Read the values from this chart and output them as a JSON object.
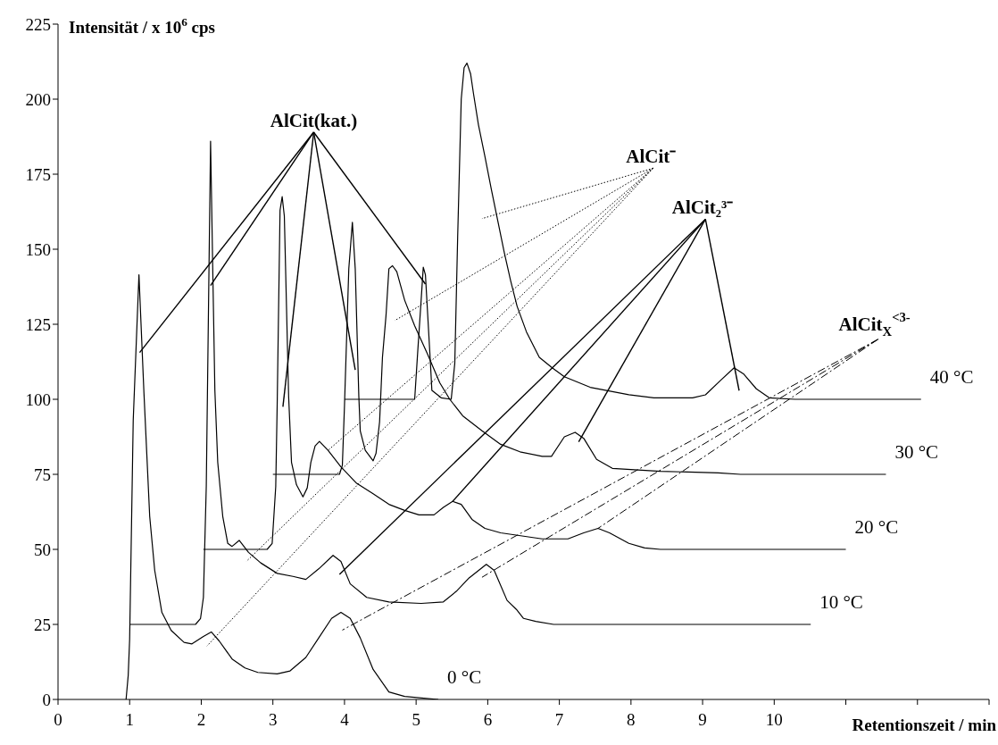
{
  "chart_data": {
    "type": "line",
    "xlabel": "Retentionszeit / min",
    "ylabel": "Intensität / x 10$^{6}$ cps",
    "xlim": [
      0,
      13
    ],
    "xticks": [
      0,
      1,
      2,
      3,
      4,
      5,
      6,
      7,
      8,
      9,
      10,
      {
        "value": 11,
        "label": null
      },
      {
        "value": 12,
        "label": null
      },
      {
        "value": 13,
        "label": null
      }
    ],
    "ylim": [
      0,
      225
    ],
    "yticks": [
      0,
      25,
      50,
      75,
      100,
      125,
      150,
      175,
      200,
      225
    ],
    "annotations": [
      {
        "text": "AlCit(kat.)",
        "x": 1.14,
        "y": 115.6
      },
      {
        "text": "AlCit⁻",
        "x": 3.77,
        "y": 83
      },
      {
        "text": "AlCit₂³⁻",
        "x": 5.51,
        "y": 66
      },
      {
        "text": "AlCit$_{X}$$^{<3-}$",
        "x": 7.54,
        "y": 57
      }
    ],
    "series": [
      {
        "name": "0 °C",
        "color": "#000000",
        "x": [
          0.95,
          0.98,
          1.0,
          1.05,
          1.13,
          1.2,
          1.28,
          1.35,
          1.45,
          1.58,
          1.76,
          1.87,
          2.03,
          2.14,
          2.25,
          2.43,
          2.61,
          2.79,
          3.06,
          3.24,
          3.46,
          3.64,
          3.82,
          3.95,
          4.08,
          4.22,
          4.4,
          4.62,
          4.84,
          5.31
        ],
        "values": [
          0,
          8,
          20,
          93,
          141.5,
          102,
          61,
          43,
          29,
          23,
          19,
          18.5,
          21,
          22.5,
          19.5,
          13.5,
          10.5,
          9,
          8.5,
          9.5,
          14,
          20.5,
          27,
          29,
          27,
          20.5,
          10,
          2.5,
          1,
          0
        ]
      },
      {
        "name": "10 °C",
        "color": "#000000",
        "x": [
          1.0,
          1.92,
          1.99,
          2.03,
          2.07,
          2.13,
          2.16,
          2.19,
          2.23,
          2.3,
          2.37,
          2.43,
          2.53,
          2.66,
          2.83,
          3.06,
          3.28,
          3.46,
          3.64,
          3.84,
          3.95,
          4.08,
          4.31,
          4.62,
          5.07,
          5.38,
          5.56,
          5.74,
          5.98,
          6.09,
          6.27,
          6.4,
          6.5,
          6.67,
          6.92,
          10.51
        ],
        "values": [
          25,
          25,
          27,
          34,
          71,
          186,
          144,
          103,
          79,
          61,
          52,
          51,
          53,
          49,
          45.5,
          42,
          41,
          40,
          43.5,
          48,
          46,
          38.5,
          34,
          32.5,
          32,
          32.5,
          36,
          40.5,
          45,
          43,
          33,
          30,
          27,
          26,
          25,
          25
        ]
      },
      {
        "name": "20 °C",
        "color": "#000000",
        "x": [
          2.03,
          2.92,
          2.99,
          3.04,
          3.06,
          3.1,
          3.13,
          3.16,
          3.22,
          3.26,
          3.33,
          3.42,
          3.48,
          3.53,
          3.59,
          3.65,
          3.77,
          3.95,
          4.17,
          4.4,
          4.62,
          4.84,
          5.04,
          5.25,
          5.38,
          5.51,
          5.63,
          5.78,
          5.96,
          6.18,
          6.76,
          7.12,
          7.34,
          7.54,
          7.7,
          7.97,
          8.19,
          8.41,
          11.0
        ],
        "values": [
          50,
          50,
          52,
          71,
          98,
          163,
          167.5,
          161,
          101,
          79,
          71.5,
          67.5,
          70.5,
          79,
          84.5,
          86,
          83,
          77.5,
          72,
          68.5,
          65,
          63,
          61.5,
          61.5,
          64,
          66,
          65,
          60,
          57,
          55.5,
          53.5,
          53.5,
          55.5,
          57,
          55.5,
          52,
          50.5,
          50,
          50
        ]
      },
      {
        "name": "30 °C",
        "color": "#000000",
        "x": [
          3.0,
          3.93,
          3.97,
          4.0,
          4.06,
          4.11,
          4.15,
          4.2,
          4.22,
          4.29,
          4.4,
          4.44,
          4.49,
          4.53,
          4.58,
          4.62,
          4.67,
          4.73,
          4.84,
          4.98,
          5.16,
          5.33,
          5.47,
          5.65,
          5.92,
          6.18,
          6.45,
          6.76,
          6.89,
          7.07,
          7.22,
          7.34,
          7.52,
          7.74,
          8.41,
          9.22,
          9.53,
          11.56
        ],
        "values": [
          75,
          75,
          78,
          98,
          143.5,
          159,
          143.5,
          101,
          89.5,
          83,
          79.5,
          82,
          92.5,
          114,
          128,
          143.5,
          144.5,
          142.5,
          133,
          124.5,
          115,
          105.5,
          100,
          94.5,
          89.5,
          85,
          82.5,
          81,
          81,
          87.5,
          89,
          87,
          80,
          77,
          76,
          75.5,
          75,
          75
        ]
      },
      {
        "name": "40 °C",
        "color": "#000000",
        "x": [
          4.0,
          4.98,
          5.02,
          5.07,
          5.1,
          5.13,
          5.2,
          5.22,
          5.35,
          5.49,
          5.54,
          5.58,
          5.63,
          5.67,
          5.71,
          5.76,
          5.8,
          5.87,
          5.96,
          6.05,
          6.14,
          6.23,
          6.32,
          6.41,
          6.54,
          6.72,
          6.9,
          7.07,
          7.43,
          7.97,
          8.32,
          8.86,
          9.04,
          9.26,
          9.44,
          9.57,
          9.75,
          9.93,
          10.29,
          12.05
        ],
        "values": [
          100,
          100,
          115,
          133,
          144,
          141.5,
          112,
          103,
          100.5,
          100,
          112,
          154,
          200,
          210.5,
          212,
          208.5,
          202,
          191.5,
          181,
          170,
          159.5,
          149,
          139.5,
          131,
          122.5,
          114,
          110.5,
          107.5,
          104,
          101.5,
          100.5,
          100.5,
          101.5,
          106.5,
          110.5,
          108.5,
          103.5,
          100.5,
          100,
          100
        ]
      }
    ]
  }
}
